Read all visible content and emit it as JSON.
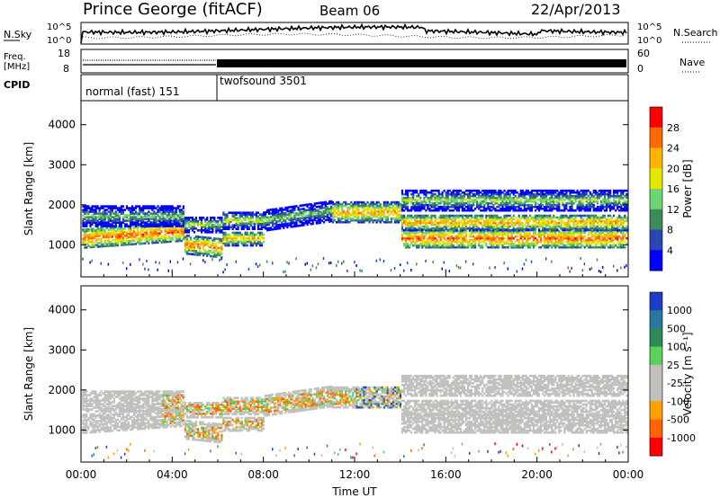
{
  "header": {
    "station": "Prince George (fitACF)",
    "beam": "Beam 06",
    "date": "22/Apr/2013"
  },
  "status_panels": {
    "nsky_label": "N.Sky",
    "nsky_ticks": [
      "10^5",
      "10^0"
    ],
    "nsearch_label": "N.Search",
    "nsearch_ticks": [
      "10^5",
      "10^0"
    ],
    "freq_label_1": "Freq.",
    "freq_label_2": "[MHz]",
    "freq_ticks": [
      "18",
      "8"
    ],
    "nave_label": "Nave",
    "nave_ticks": [
      "60",
      "0"
    ],
    "cpid_label": "CPID",
    "cpid_segments": [
      {
        "name": "normal (fast) 151",
        "start_hour": 0.0,
        "end_hour": 6.0
      },
      {
        "name": "twofsound 3501",
        "start_hour": 6.0,
        "end_hour": 24.0
      }
    ]
  },
  "chart_data": [
    {
      "type": "heatmap",
      "panel": "power",
      "ylabel": "Slant Range [km]",
      "xlim": [
        0,
        24
      ],
      "ylim": [
        200,
        4600
      ],
      "y_ticks": [
        1000,
        2000,
        3000,
        4000
      ],
      "colorbar": {
        "label": "Power [dB]",
        "ticks": [
          "28",
          "24",
          "20",
          "16",
          "12",
          "8",
          "4"
        ],
        "colors": [
          "#ff0000",
          "#ff6a00",
          "#ffb400",
          "#e6e600",
          "#6ed66e",
          "#3c8c5a",
          "#2846b4",
          "#0000ff"
        ]
      }
    },
    {
      "type": "heatmap",
      "panel": "velocity",
      "ylabel": "Slant Range [km]",
      "xlabel": "Time UT",
      "xlim": [
        0,
        24
      ],
      "ylim": [
        200,
        4600
      ],
      "y_ticks": [
        1000,
        2000,
        3000,
        4000
      ],
      "x_ticks": [
        "00:00",
        "04:00",
        "08:00",
        "12:00",
        "16:00",
        "20:00",
        "00:00"
      ],
      "colorbar": {
        "label": "Velocity [m s⁻¹]",
        "ticks": [
          "1000",
          "500",
          "100",
          "25",
          "-25",
          "-100",
          "-500",
          "-1000"
        ],
        "colors": [
          "#1e3cc8",
          "#2878a0",
          "#2e8b57",
          "#5ad25a",
          "#c0c0bc",
          "#c0c0bc",
          "#ffa000",
          "#ff6400",
          "#ff0000"
        ]
      }
    }
  ]
}
